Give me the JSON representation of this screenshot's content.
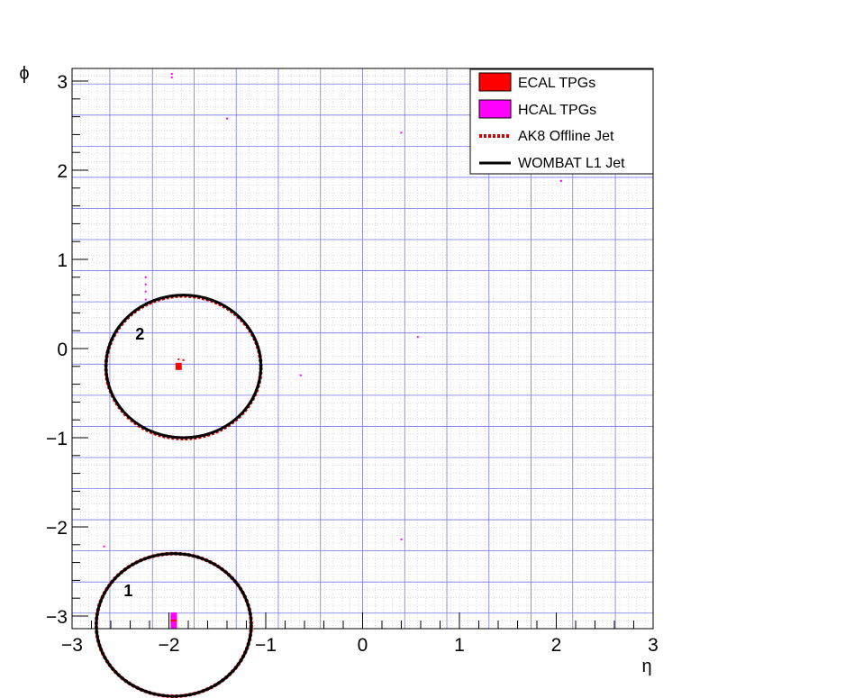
{
  "chart_data": {
    "type": "scatter",
    "title": "",
    "xlabel": "η",
    "ylabel": "ϕ",
    "xlim": [
      -3,
      3
    ],
    "ylim": [
      -3.1416,
      3.1416
    ],
    "x_ticks": [
      -3,
      -2,
      -1,
      0,
      1,
      2,
      3
    ],
    "x_tick_labels": [
      "−3",
      "−2",
      "−1",
      "0",
      "1",
      "2",
      "3"
    ],
    "y_ticks": [
      -3,
      -2,
      -1,
      0,
      1,
      2,
      3
    ],
    "y_tick_labels": [
      "−3",
      "−2",
      "−1",
      "0",
      "1",
      "2",
      "3"
    ],
    "grid": {
      "major": true,
      "fine": true,
      "major_eta": [
        -2.61,
        -2.17,
        -1.74,
        -1.305,
        -0.87,
        -0.435,
        0,
        0.435,
        0.87,
        1.305,
        1.74,
        2.17,
        2.61
      ],
      "major_phi": [
        -2.967,
        -2.618,
        -2.269,
        -1.92,
        -1.571,
        -1.222,
        -0.873,
        -0.524,
        -0.175,
        0.175,
        0.524,
        0.873,
        1.222,
        1.571,
        1.92,
        2.269,
        2.618,
        2.967
      ],
      "fine_eta_step": 0.087,
      "fine_phi_step": 0.0873
    },
    "legend": {
      "position": "top-right",
      "entries": [
        {
          "label": "ECAL TPGs",
          "style": "box",
          "color": "#ff0000"
        },
        {
          "label": "HCAL TPGs",
          "style": "box",
          "color": "#ff00ff"
        },
        {
          "label": "AK8 Offline Jet",
          "style": "dotted-line",
          "color": "#cc0000"
        },
        {
          "label": "WOMBAT L1 Jet",
          "style": "solid-line",
          "color": "#000000"
        }
      ]
    },
    "series": [
      {
        "name": "ECAL TPGs",
        "color": "#ff0000",
        "points": [
          {
            "eta": -1.9,
            "phi": -0.2,
            "size": "large"
          },
          {
            "eta": -1.95,
            "phi": -3.05,
            "size": "large"
          },
          {
            "eta": -1.85,
            "phi": -0.13,
            "size": "small"
          },
          {
            "eta": -1.9,
            "phi": -0.12,
            "size": "small"
          }
        ]
      },
      {
        "name": "HCAL TPGs",
        "color": "#ff00ff",
        "points": [
          {
            "eta": -1.95,
            "phi": -3.0,
            "size": "large"
          },
          {
            "eta": -1.95,
            "phi": -3.1,
            "size": "large"
          },
          {
            "eta": -1.97,
            "phi": 3.08,
            "size": "small"
          },
          {
            "eta": -1.97,
            "phi": 3.04,
            "size": "small"
          },
          {
            "eta": -2.24,
            "phi": 0.8,
            "size": "small"
          },
          {
            "eta": -2.24,
            "phi": 0.72,
            "size": "small"
          },
          {
            "eta": -2.24,
            "phi": 0.64,
            "size": "small"
          },
          {
            "eta": -2.24,
            "phi": 0.55,
            "size": "small"
          },
          {
            "eta": -0.64,
            "phi": -0.3,
            "size": "small"
          },
          {
            "eta": 0.57,
            "phi": 0.13,
            "size": "small"
          },
          {
            "eta": 2.05,
            "phi": 1.88,
            "size": "small"
          },
          {
            "eta": 0.4,
            "phi": -2.14,
            "size": "small"
          },
          {
            "eta": -2.67,
            "phi": -2.22,
            "size": "small"
          },
          {
            "eta": 0.4,
            "phi": 2.42,
            "size": "small"
          },
          {
            "eta": -1.4,
            "phi": 2.58,
            "size": "small"
          }
        ]
      }
    ],
    "jets": [
      {
        "name": "AK8 Offline Jet",
        "label": "2",
        "eta": -1.85,
        "phi": -0.21,
        "radius": 0.8,
        "style": "dotted",
        "color": "#cc0000"
      },
      {
        "name": "WOMBAT L1 Jet",
        "label": "2",
        "eta": -1.85,
        "phi": -0.2,
        "radius": 0.8,
        "style": "solid",
        "color": "#000000"
      },
      {
        "name": "AK8 Offline Jet",
        "label": "1",
        "eta": -1.95,
        "phi": -3.1,
        "radius": 0.8,
        "style": "dotted",
        "color": "#cc0000"
      },
      {
        "name": "WOMBAT L1 Jet",
        "label": "1",
        "eta": -1.95,
        "phi": -3.1,
        "radius": 0.8,
        "style": "solid",
        "color": "#000000"
      }
    ],
    "jet_labels": [
      {
        "text": "2",
        "eta": -2.3,
        "phi": 0.1
      },
      {
        "text": "1",
        "eta": -2.42,
        "phi": -2.78
      }
    ]
  }
}
